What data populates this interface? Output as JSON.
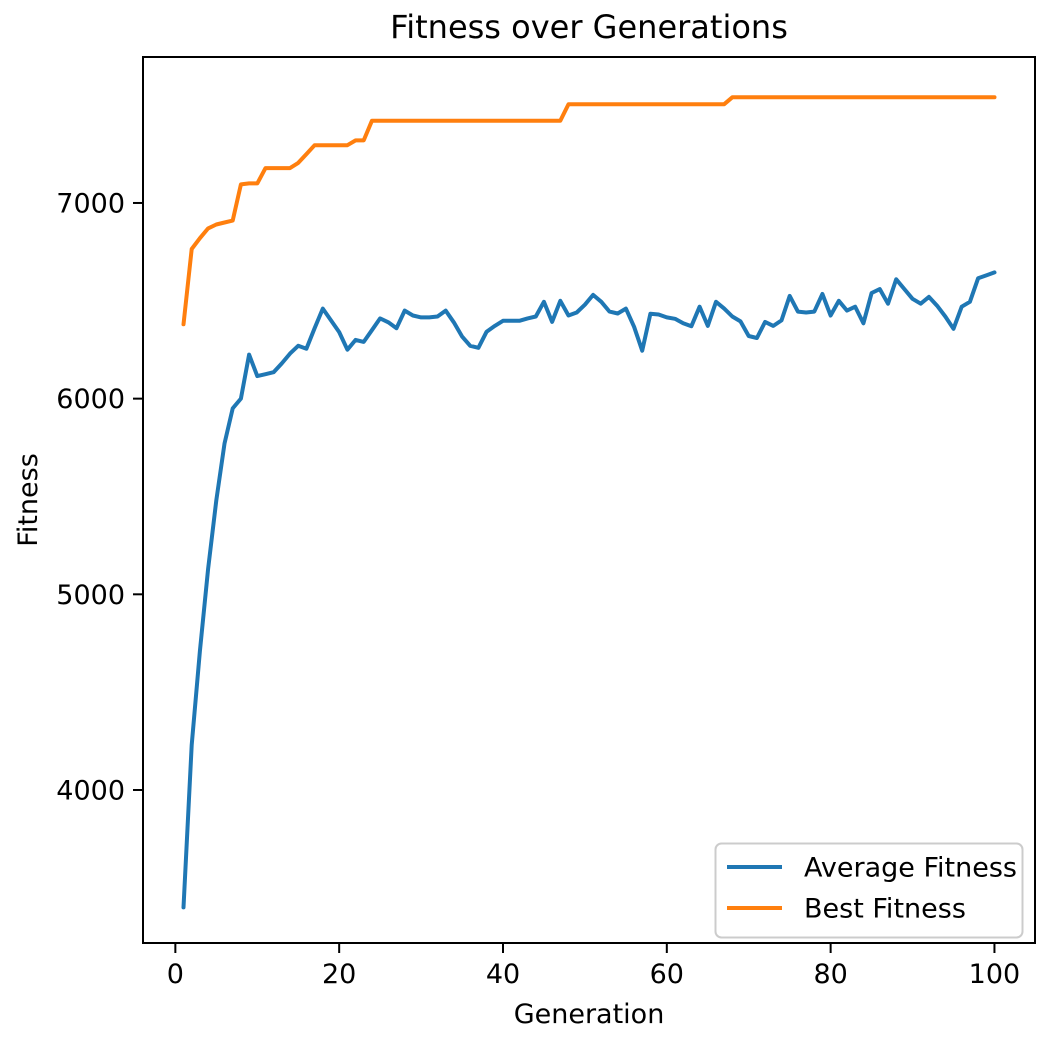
{
  "figure": {
    "background": "#ffffff",
    "text_color": "#000000",
    "spine_color": "#000000"
  },
  "chart_data": {
    "type": "line",
    "title": "Fitness over Generations",
    "xlabel": "Generation",
    "ylabel": "Fitness",
    "xlim": [
      -3.95,
      104.95
    ],
    "ylim": [
      3218,
      7746
    ],
    "x_ticks": [
      0,
      20,
      40,
      60,
      80,
      100
    ],
    "y_ticks": [
      4000,
      5000,
      6000,
      7000
    ],
    "grid": false,
    "legend": {
      "position": "lower right",
      "border_color": "#cccccc",
      "background": "#ffffff"
    },
    "x": [
      1,
      2,
      3,
      4,
      5,
      6,
      7,
      8,
      9,
      10,
      11,
      12,
      13,
      14,
      15,
      16,
      17,
      18,
      19,
      20,
      21,
      22,
      23,
      24,
      25,
      26,
      27,
      28,
      29,
      30,
      31,
      32,
      33,
      34,
      35,
      36,
      37,
      38,
      39,
      40,
      41,
      42,
      43,
      44,
      45,
      46,
      47,
      48,
      49,
      50,
      51,
      52,
      53,
      54,
      55,
      56,
      57,
      58,
      59,
      60,
      61,
      62,
      63,
      64,
      65,
      66,
      67,
      68,
      69,
      70,
      71,
      72,
      73,
      74,
      75,
      76,
      77,
      78,
      79,
      80,
      81,
      82,
      83,
      84,
      85,
      86,
      87,
      88,
      89,
      90,
      91,
      92,
      93,
      94,
      95,
      96,
      97,
      98,
      99,
      100
    ],
    "series": [
      {
        "name": "Average Fitness",
        "color": "#1f77b4",
        "values": [
          3400,
          4230,
          4710,
          5130,
          5480,
          5770,
          5950,
          6000,
          6225,
          6115,
          6125,
          6135,
          6180,
          6230,
          6270,
          6255,
          6360,
          6460,
          6400,
          6340,
          6250,
          6300,
          6290,
          6350,
          6410,
          6390,
          6360,
          6450,
          6425,
          6415,
          6415,
          6420,
          6450,
          6390,
          6318,
          6270,
          6260,
          6342,
          6372,
          6398,
          6398,
          6398,
          6410,
          6420,
          6495,
          6392,
          6500,
          6425,
          6440,
          6480,
          6530,
          6495,
          6445,
          6435,
          6460,
          6367,
          6245,
          6434,
          6430,
          6415,
          6408,
          6385,
          6370,
          6470,
          6372,
          6495,
          6460,
          6420,
          6395,
          6320,
          6310,
          6392,
          6372,
          6400,
          6525,
          6445,
          6440,
          6445,
          6535,
          6425,
          6500,
          6450,
          6470,
          6385,
          6540,
          6560,
          6485,
          6610,
          6560,
          6510,
          6485,
          6520,
          6475,
          6420,
          6357,
          6470,
          6495,
          6615,
          6630,
          6645
        ]
      },
      {
        "name": "Best Fitness",
        "color": "#ff7f0e",
        "values": [
          6380,
          6765,
          6820,
          6870,
          6890,
          6900,
          6910,
          7095,
          7100,
          7100,
          7178,
          7178,
          7178,
          7178,
          7205,
          7250,
          7295,
          7295,
          7295,
          7295,
          7295,
          7320,
          7320,
          7420,
          7420,
          7420,
          7420,
          7420,
          7420,
          7420,
          7420,
          7420,
          7420,
          7420,
          7420,
          7420,
          7420,
          7420,
          7420,
          7420,
          7420,
          7420,
          7420,
          7420,
          7420,
          7420,
          7420,
          7505,
          7505,
          7505,
          7505,
          7505,
          7505,
          7505,
          7505,
          7505,
          7505,
          7505,
          7505,
          7505,
          7505,
          7505,
          7505,
          7505,
          7505,
          7505,
          7505,
          7540,
          7540,
          7540,
          7540,
          7540,
          7540,
          7540,
          7540,
          7540,
          7540,
          7540,
          7540,
          7540,
          7540,
          7540,
          7540,
          7540,
          7540,
          7540,
          7540,
          7540,
          7540,
          7540,
          7540,
          7540,
          7540,
          7540,
          7540,
          7540,
          7540,
          7540,
          7540,
          7540
        ]
      }
    ]
  }
}
